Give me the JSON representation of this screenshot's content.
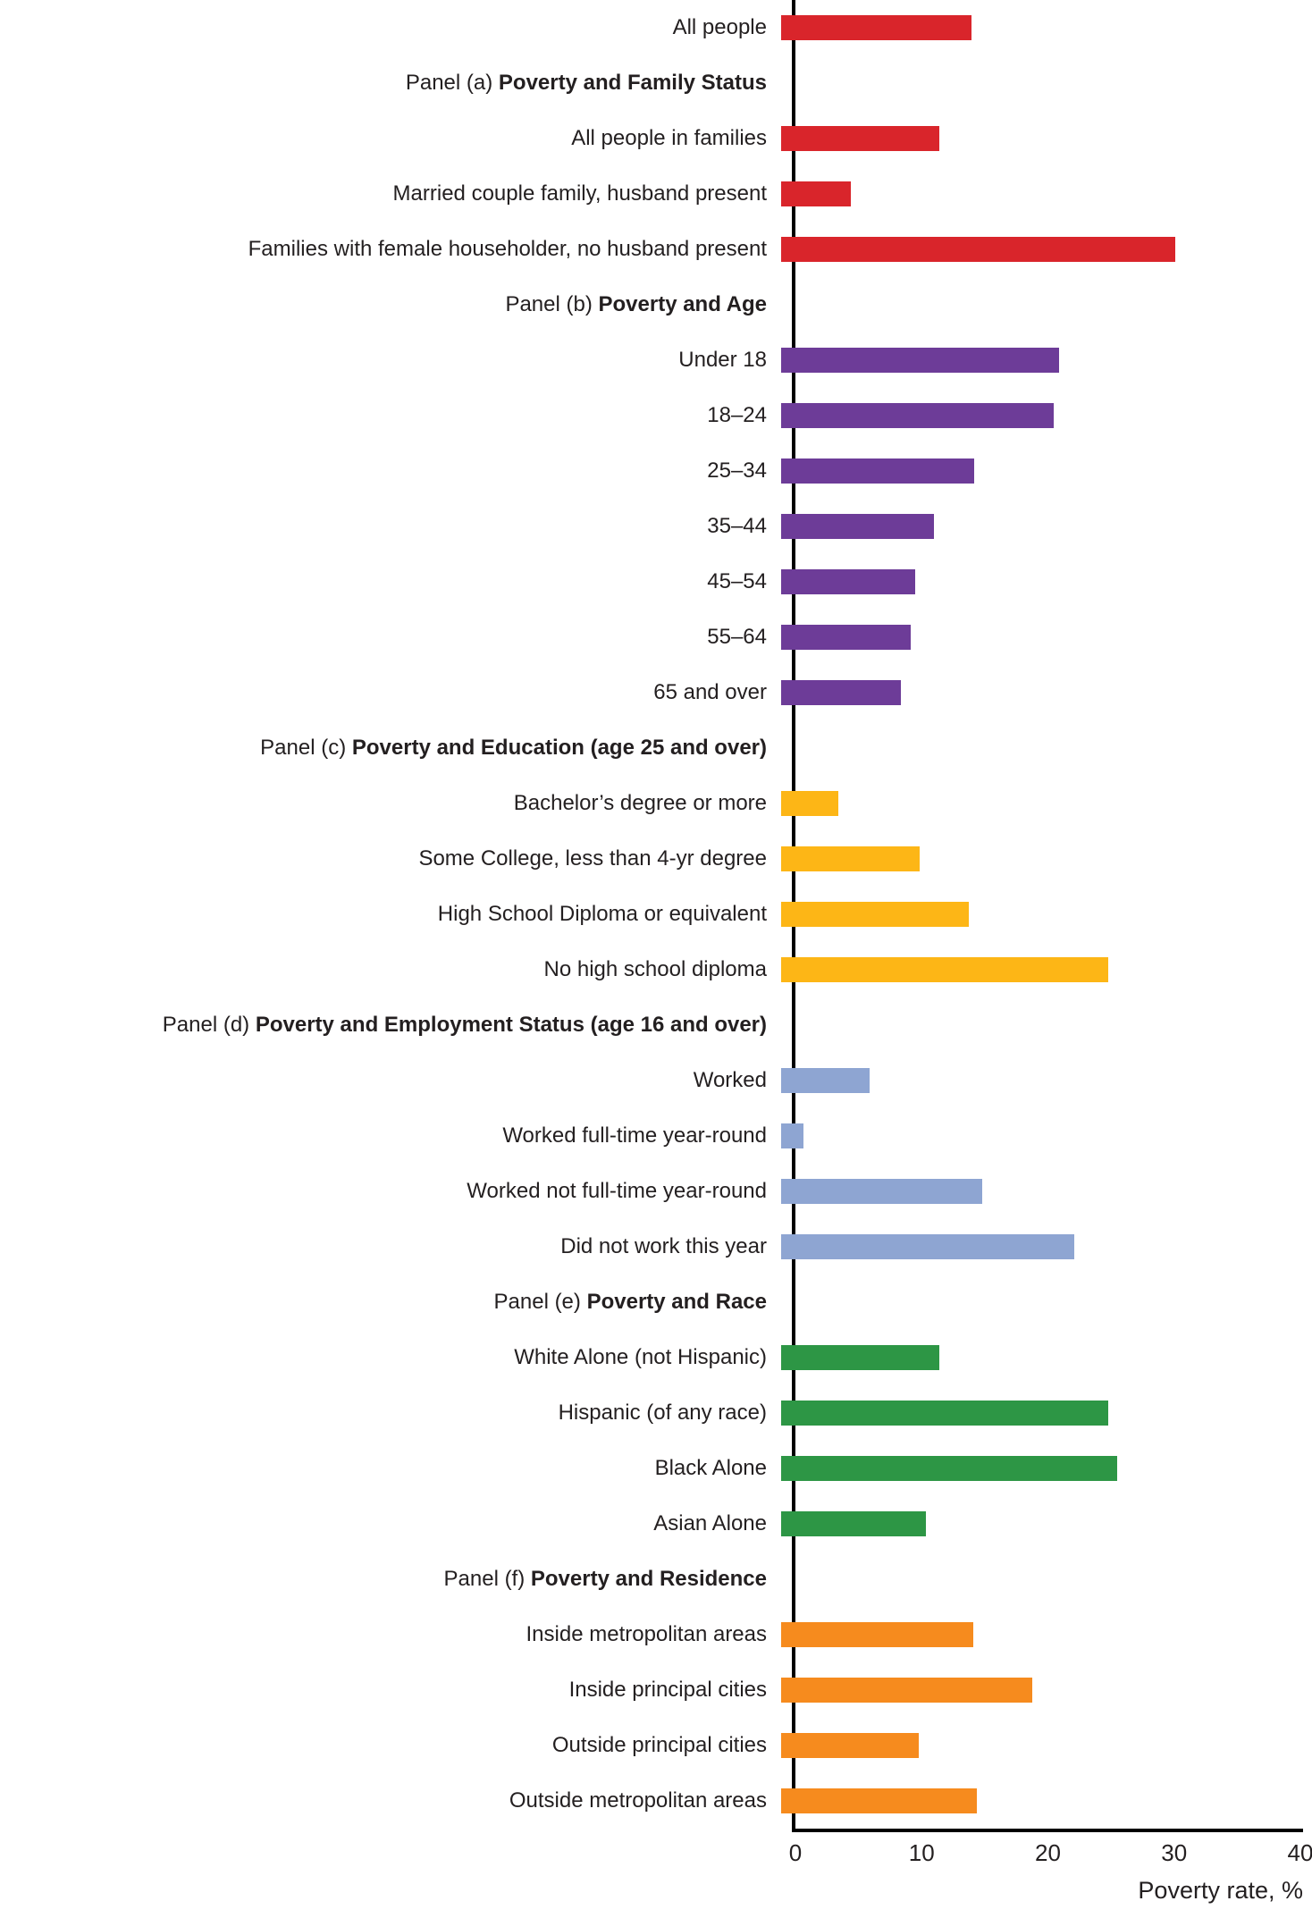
{
  "chart_data": {
    "type": "bar",
    "orientation": "horizontal",
    "title": "",
    "xlabel": "Poverty rate, %",
    "ylabel": "",
    "xlim": [
      0,
      40
    ],
    "xticks": [
      0,
      10,
      20,
      30,
      40
    ],
    "grid": true,
    "legend": false,
    "colors": {
      "red": "#d9252b",
      "purple": "#6d3c98",
      "gold": "#fdb616",
      "blue": "#8ea5d2",
      "green": "#2d9645",
      "orange": "#f68b1e"
    },
    "rows": [
      {
        "type": "bar",
        "label": "All people",
        "value": 15.1,
        "color": "red"
      },
      {
        "type": "header",
        "prefix": "Panel (a)",
        "title": "Poverty and Family Status"
      },
      {
        "type": "bar",
        "label": "All people in families",
        "value": 12.5,
        "color": "red"
      },
      {
        "type": "bar",
        "label": "Married couple family, husband present",
        "value": 5.5,
        "color": "red"
      },
      {
        "type": "bar",
        "label": "Families with female householder, no husband present",
        "value": 31.2,
        "color": "red"
      },
      {
        "type": "header",
        "prefix": "Panel (b)",
        "title": "Poverty and Age"
      },
      {
        "type": "bar",
        "label": "Under 18",
        "value": 22.0,
        "color": "purple"
      },
      {
        "type": "bar",
        "label": "18–24",
        "value": 21.6,
        "color": "purple"
      },
      {
        "type": "bar",
        "label": "25–34",
        "value": 15.3,
        "color": "purple"
      },
      {
        "type": "bar",
        "label": "35–44",
        "value": 12.1,
        "color": "purple"
      },
      {
        "type": "bar",
        "label": "45–54",
        "value": 10.6,
        "color": "purple"
      },
      {
        "type": "bar",
        "label": "55–64",
        "value": 10.3,
        "color": "purple"
      },
      {
        "type": "bar",
        "label": "65 and over",
        "value": 9.5,
        "color": "purple"
      },
      {
        "type": "header",
        "prefix": "Panel (c)",
        "title": "Poverty and Education (age 25 and over)"
      },
      {
        "type": "bar",
        "label": "Bachelor’s degree or more",
        "value": 4.5,
        "color": "gold"
      },
      {
        "type": "bar",
        "label": "Some College, less than 4-yr degree",
        "value": 11.0,
        "color": "gold"
      },
      {
        "type": "bar",
        "label": "High School Diploma or equivalent",
        "value": 14.9,
        "color": "gold"
      },
      {
        "type": "bar",
        "label": "No high school diploma",
        "value": 25.9,
        "color": "gold"
      },
      {
        "type": "header",
        "prefix": "Panel (d)",
        "title": "Poverty and Employment Status (age 16 and over)"
      },
      {
        "type": "bar",
        "label": "Worked",
        "value": 7.0,
        "color": "blue"
      },
      {
        "type": "bar",
        "label": "Worked full-time year-round",
        "value": 1.8,
        "color": "blue"
      },
      {
        "type": "bar",
        "label": "Worked not full-time year-round",
        "value": 15.9,
        "color": "blue"
      },
      {
        "type": "bar",
        "label": "Did not work this year",
        "value": 23.2,
        "color": "blue"
      },
      {
        "type": "header",
        "prefix": "Panel (e)",
        "title": "Poverty and Race"
      },
      {
        "type": "bar",
        "label": "White Alone (not Hispanic)",
        "value": 12.5,
        "color": "green"
      },
      {
        "type": "bar",
        "label": "Hispanic (of any race)",
        "value": 25.9,
        "color": "green"
      },
      {
        "type": "bar",
        "label": "Black Alone",
        "value": 26.6,
        "color": "green"
      },
      {
        "type": "bar",
        "label": "Asian Alone",
        "value": 11.5,
        "color": "green"
      },
      {
        "type": "header",
        "prefix": "Panel (f)",
        "title": "Poverty and Residence"
      },
      {
        "type": "bar",
        "label": "Inside metropolitan areas",
        "value": 15.2,
        "color": "orange"
      },
      {
        "type": "bar",
        "label": "Inside principal cities",
        "value": 19.9,
        "color": "orange"
      },
      {
        "type": "bar",
        "label": "Outside principal cities",
        "value": 10.9,
        "color": "orange"
      },
      {
        "type": "bar",
        "label": "Outside metropolitan areas",
        "value": 15.5,
        "color": "orange"
      }
    ]
  }
}
